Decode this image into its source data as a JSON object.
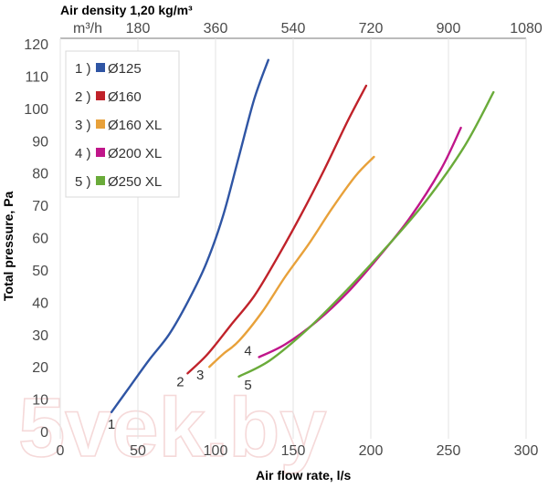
{
  "chart_data": {
    "type": "line",
    "top_axis_title": "Air density 1,20 kg/m³",
    "top_axis_unit": "m³/h",
    "top_ticks": [
      "180",
      "360",
      "540",
      "720",
      "900",
      "1080"
    ],
    "xlabel": "Air flow rate, l/s",
    "ylabel": "Total pressure, Pa",
    "xlim": [
      0,
      300
    ],
    "ylim": [
      0,
      120
    ],
    "x_ticks": [
      "0",
      "50",
      "100",
      "150",
      "200",
      "250",
      "300"
    ],
    "y_ticks": [
      "0",
      "10",
      "20",
      "30",
      "40",
      "50",
      "60",
      "70",
      "80",
      "90",
      "100",
      "110",
      "120"
    ],
    "grid": "vertical",
    "legend_position": "top-left",
    "series": [
      {
        "legend_index": "1 )",
        "name": "Ø125",
        "label": "1",
        "color": "#2f55a4",
        "points": [
          [
            33,
            6
          ],
          [
            45,
            14
          ],
          [
            57,
            22
          ],
          [
            70,
            30
          ],
          [
            82,
            40
          ],
          [
            94,
            52
          ],
          [
            105,
            67
          ],
          [
            115,
            85
          ],
          [
            125,
            103
          ],
          [
            134,
            115
          ]
        ]
      },
      {
        "legend_index": "2 )",
        "name": "Ø160",
        "label": "2",
        "color": "#c0222a",
        "points": [
          [
            82,
            18
          ],
          [
            95,
            24
          ],
          [
            110,
            33
          ],
          [
            125,
            42
          ],
          [
            140,
            54
          ],
          [
            155,
            67
          ],
          [
            170,
            81
          ],
          [
            185,
            96
          ],
          [
            197,
            107
          ]
        ]
      },
      {
        "legend_index": "3 )",
        "name": "Ø160 XL",
        "label": "3",
        "color": "#e8a13a",
        "points": [
          [
            96,
            20
          ],
          [
            105,
            24
          ],
          [
            115,
            28
          ],
          [
            130,
            37
          ],
          [
            145,
            48
          ],
          [
            160,
            58
          ],
          [
            175,
            69
          ],
          [
            190,
            79
          ],
          [
            202,
            85
          ]
        ]
      },
      {
        "legend_index": "4 )",
        "name": "Ø200 XL",
        "label": "4",
        "color": "#c0168a",
        "points": [
          [
            128,
            23
          ],
          [
            145,
            27
          ],
          [
            165,
            34
          ],
          [
            185,
            43
          ],
          [
            205,
            54
          ],
          [
            225,
            66
          ],
          [
            245,
            81
          ],
          [
            258,
            94
          ]
        ]
      },
      {
        "legend_index": "5 )",
        "name": "Ø250 XL",
        "label": "5",
        "color": "#6aab3a",
        "points": [
          [
            115,
            17
          ],
          [
            135,
            22
          ],
          [
            160,
            32
          ],
          [
            185,
            44
          ],
          [
            210,
            57
          ],
          [
            235,
            71
          ],
          [
            260,
            88
          ],
          [
            279,
            105
          ]
        ]
      }
    ]
  },
  "watermark": "5vek.by"
}
